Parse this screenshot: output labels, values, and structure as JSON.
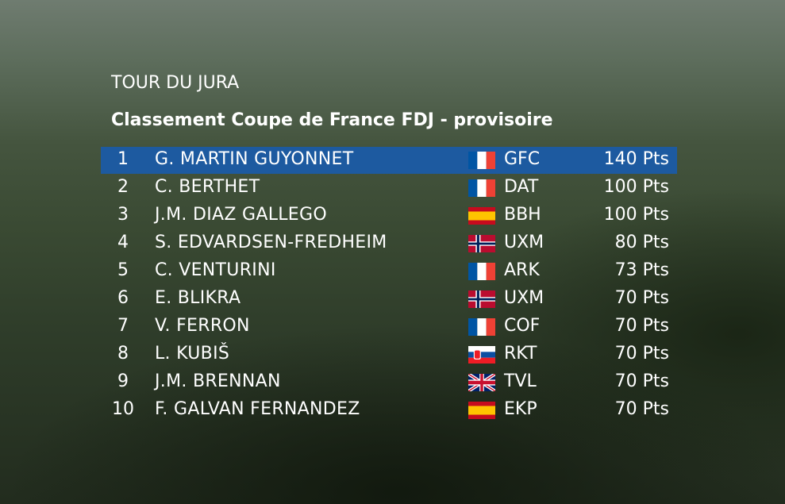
{
  "header": {
    "title": "TOUR DU JURA",
    "subtitle": "Classement Coupe de France FDJ  - provisoire"
  },
  "table": {
    "rows": [
      [
        "1",
        "G. MARTIN GUYONNET",
        "GFC",
        "140 Pts"
      ],
      [
        "2",
        "C. BERTHET",
        "DAT",
        "100 Pts"
      ],
      [
        "3",
        "J.M. DIAZ GALLEGO",
        "BBH",
        "100 Pts"
      ],
      [
        "4",
        "S. EDVARDSEN-FREDHEIM",
        "UXM",
        "80 Pts"
      ],
      [
        "5",
        "C. VENTURINI",
        "ARK",
        "73 Pts"
      ],
      [
        "6",
        "E. BLIKRA",
        "UXM",
        "70 Pts"
      ],
      [
        "7",
        "V. FERRON",
        "COF",
        "70 Pts"
      ],
      [
        "8",
        "L. KUBIŠ",
        "RKT",
        "70 Pts"
      ],
      [
        "9",
        "J.M. BRENNAN",
        "TVL",
        "70 Pts"
      ],
      [
        "10",
        "F. GALVAN FERNANDEZ",
        "EKP",
        "70 Pts"
      ]
    ]
  }
}
